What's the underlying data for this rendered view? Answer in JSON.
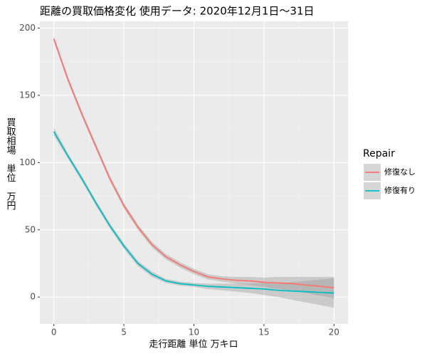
{
  "chart_data": {
    "type": "line",
    "title": "距離の買取価格変化 使用データ: 2020年12月1日～31日",
    "x_label": "走行距離 単位 万キロ",
    "y_label": "買取相場　単位　万円",
    "legend_title": "Repair",
    "legend_position": "right",
    "grid": true,
    "band_color": "#999999",
    "x": [
      0,
      1,
      2,
      3,
      4,
      5,
      6,
      7,
      8,
      9,
      10,
      11,
      12,
      13,
      14,
      15,
      16,
      17,
      18,
      19,
      20
    ],
    "series": [
      {
        "name": "修復なし",
        "color": "#F8766D",
        "values": [
          192,
          162,
          136,
          112,
          88,
          68,
          52,
          39,
          30,
          24,
          19,
          15,
          13.5,
          12.5,
          12,
          11,
          10.5,
          10,
          9,
          8,
          7
        ],
        "lower": [
          190,
          160,
          134,
          110,
          86,
          66,
          50,
          37,
          28,
          22,
          17,
          13,
          11.5,
          10,
          9,
          7.5,
          6,
          5,
          3,
          1,
          -1
        ],
        "upper": [
          194,
          164,
          138,
          114,
          90,
          70,
          54,
          41,
          32,
          26,
          21,
          17,
          15.5,
          15,
          15,
          14.5,
          15,
          15,
          15,
          15,
          15
        ]
      },
      {
        "name": "修復有り",
        "color": "#00BFC4",
        "values": [
          123,
          105,
          88,
          70,
          53,
          38,
          25,
          17,
          12,
          10,
          9,
          8,
          7.5,
          7,
          6.5,
          6,
          5,
          4.5,
          4,
          3.5,
          3
        ],
        "lower": [
          120,
          103,
          86,
          68,
          51,
          36,
          23,
          15,
          10.5,
          8.5,
          7.5,
          6,
          5,
          4,
          3,
          1.5,
          0,
          -2,
          -4,
          -6,
          -8
        ],
        "upper": [
          126,
          107,
          90,
          72,
          55,
          40,
          27,
          19,
          13.5,
          11.5,
          10.5,
          10,
          10,
          10,
          10,
          10.5,
          10,
          11,
          12,
          13,
          14
        ]
      }
    ],
    "xlim": [
      -1,
      21
    ],
    "ylim": [
      -20,
      205
    ],
    "xticks": [
      0,
      5,
      10,
      15,
      20
    ],
    "yticks": [
      0,
      50,
      100,
      150,
      200
    ]
  }
}
